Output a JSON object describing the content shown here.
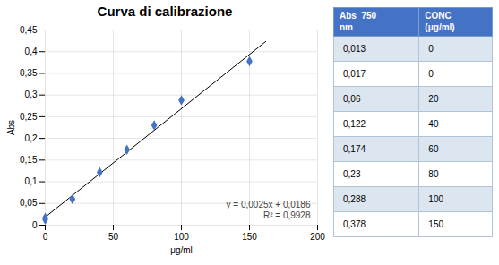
{
  "chart_data": {
    "type": "scatter",
    "title": "Curva di calibrazione",
    "x_label": "μg/ml",
    "y_label": "Abs",
    "x": [
      0,
      0,
      20,
      40,
      60,
      80,
      100,
      150
    ],
    "values": [
      0.013,
      0.017,
      0.06,
      0.122,
      0.174,
      0.23,
      0.288,
      0.378
    ],
    "color": "#4472c4",
    "marker": "diamond",
    "trendline": {
      "type": "line",
      "x": [
        -2,
        162
      ],
      "values": [
        0.0136,
        0.4236
      ],
      "color": "#000000",
      "line_style": "solid"
    },
    "annotations": [
      "y = 0,0025x + 0,0186",
      "R² = 0,9928"
    ],
    "xlim": [
      0,
      200
    ],
    "xticks": [
      0,
      50,
      100,
      150,
      200
    ],
    "ylim": [
      0,
      0.45
    ],
    "yticks": [
      0,
      {
        "value": 0.05,
        "label": "0,05"
      },
      {
        "value": 0.1,
        "label": "0,1"
      },
      {
        "value": 0.15,
        "label": "0,15"
      },
      {
        "value": 0.2,
        "label": "0,2"
      },
      {
        "value": 0.25,
        "label": "0,25"
      },
      {
        "value": 0.3,
        "label": "0,3"
      },
      {
        "value": 0.35,
        "label": "0,35"
      },
      {
        "value": 0.4,
        "label": "0,4"
      },
      {
        "value": 0.45,
        "label": "0,45"
      }
    ],
    "grid": true,
    "table": {
      "header": [
        [
          "Abs  750",
          "nm"
        ],
        [
          "CONC",
          "(μg/ml)"
        ]
      ],
      "rows": [
        [
          "0,013",
          "0"
        ],
        [
          "0,017",
          "0"
        ],
        [
          "0,06",
          "20"
        ],
        [
          "0,122",
          "40"
        ],
        [
          "0,174",
          "60"
        ],
        [
          "0,23",
          "80"
        ],
        [
          "0,288",
          "100"
        ],
        [
          "0,378",
          "150"
        ]
      ],
      "header_color": "#4472c4",
      "header_text_color": "#ffffff",
      "row_colors": [
        "#dce6f1",
        "#ffffff"
      ],
      "border_color": "#4472c4"
    }
  }
}
